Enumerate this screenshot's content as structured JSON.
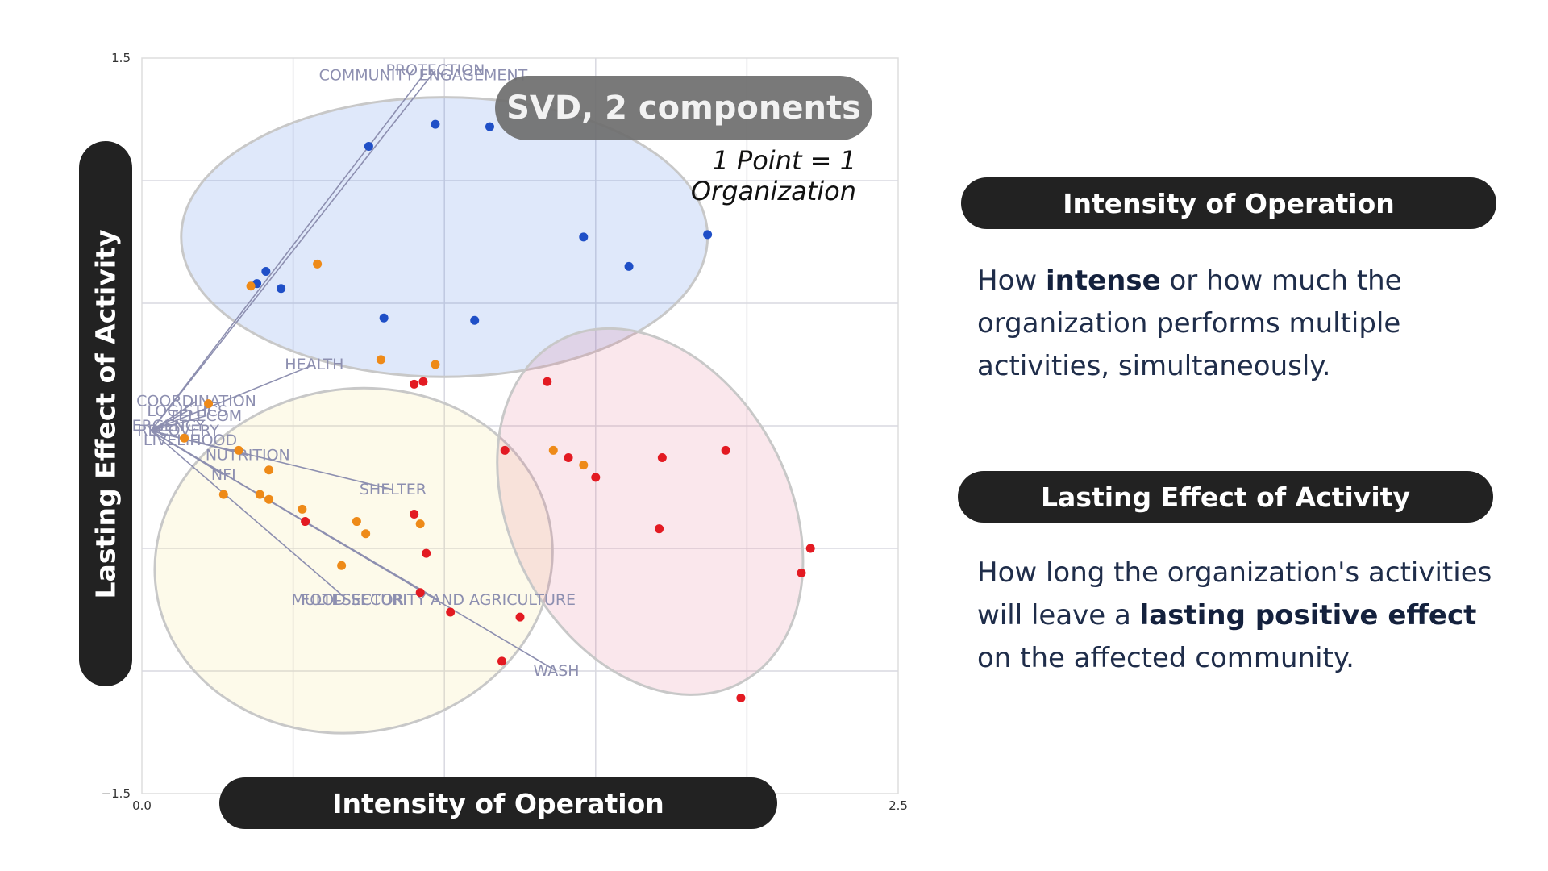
{
  "chart_data": {
    "type": "scatter",
    "title": "SVD, 2 components",
    "subtitle": "1 Point = 1 Organization",
    "xlabel": "Intensity of Operation",
    "ylabel": "Lasting Effect of Activity",
    "xlim": [
      0.0,
      2.5
    ],
    "ylim": [
      -1.5,
      1.5
    ],
    "x_ticks": [
      {
        "v": 0.0,
        "label": "0.0"
      },
      {
        "v": 2.5,
        "label": "2.5"
      }
    ],
    "y_ticks": [
      {
        "v": 1.5,
        "label": "1.5"
      },
      {
        "v": -1.5,
        "label": "−1.5"
      }
    ],
    "grid_x": [
      0.5,
      1.0,
      1.5,
      2.0
    ],
    "grid_y": [
      1.0,
      0.5,
      0.0,
      -0.5,
      -1.0
    ],
    "grid": true,
    "ellipses": [
      {
        "cx": 1.0,
        "cy": 0.77,
        "rx": 0.87,
        "ry": 0.57,
        "angle": 0,
        "color": "#3b6fe0"
      },
      {
        "cx": 0.7,
        "cy": -0.55,
        "rx": 0.66,
        "ry": 0.7,
        "angle": -10,
        "color": "#f5e27a"
      },
      {
        "cx": 1.68,
        "cy": -0.35,
        "rx": 0.46,
        "ry": 0.79,
        "angle": -28,
        "color": "#e36a86"
      }
    ],
    "origin": [
      0.03,
      -0.02
    ],
    "loadings": [
      {
        "label": "PROTECTION",
        "x": 0.97,
        "y": 1.45
      },
      {
        "label": "COMMUNITY ENGAGEMENT",
        "x": 0.93,
        "y": 1.43
      },
      {
        "label": "HEALTH",
        "x": 0.57,
        "y": 0.25
      },
      {
        "label": "COORDINATION",
        "x": 0.18,
        "y": 0.1
      },
      {
        "label": "LOGISTICS",
        "x": 0.15,
        "y": 0.06
      },
      {
        "label": "TELECOM",
        "x": 0.21,
        "y": 0.04
      },
      {
        "label": "EMERGENCY",
        "x": 0.05,
        "y": 0.0
      },
      {
        "label": "RECOVERY",
        "x": 0.12,
        "y": -0.02
      },
      {
        "label": "LIVELIHOOD",
        "x": 0.16,
        "y": -0.06
      },
      {
        "label": "NUTRITION",
        "x": 0.35,
        "y": -0.12
      },
      {
        "label": "NFI",
        "x": 0.27,
        "y": -0.2
      },
      {
        "label": "SHELTER",
        "x": 0.83,
        "y": -0.26
      },
      {
        "label": "MULTI-SECTOR",
        "x": 0.68,
        "y": -0.71
      },
      {
        "label": "FOOD SECURITY AND AGRICULTURE",
        "x": 0.98,
        "y": -0.71
      },
      {
        "label": "WASH",
        "x": 1.37,
        "y": -1.0
      }
    ],
    "series": [
      {
        "name": "",
        "color": "#1f4fc7",
        "x": [
          0.97,
          1.15,
          0.75,
          0.41,
          0.38,
          0.46,
          0.8,
          1.1,
          1.46,
          1.61,
          1.87
        ],
        "y": [
          1.23,
          1.22,
          1.14,
          0.63,
          0.58,
          0.56,
          0.44,
          0.43,
          0.77,
          0.65,
          0.78
        ]
      },
      {
        "name": "",
        "color": "#ee8a18",
        "x": [
          0.58,
          0.36,
          0.79,
          0.97,
          0.22,
          0.14,
          0.32,
          0.42,
          0.27,
          0.39,
          0.42,
          0.53,
          0.71,
          0.74,
          0.92,
          0.66,
          1.36,
          1.46
        ],
        "y": [
          0.66,
          0.57,
          0.27,
          0.25,
          0.09,
          -0.05,
          -0.1,
          -0.18,
          -0.28,
          -0.28,
          -0.3,
          -0.34,
          -0.39,
          -0.44,
          -0.4,
          -0.57,
          -0.1,
          -0.16
        ]
      },
      {
        "name": "",
        "color": "#e31a22",
        "x": [
          0.9,
          0.93,
          1.34,
          1.2,
          1.41,
          1.5,
          1.72,
          1.93,
          0.54,
          0.9,
          0.94,
          0.92,
          1.02,
          1.25,
          1.19,
          1.71,
          2.18,
          2.21,
          1.98
        ],
        "y": [
          0.17,
          0.18,
          0.18,
          -0.1,
          -0.13,
          -0.21,
          -0.13,
          -0.1,
          -0.39,
          -0.36,
          -0.52,
          -0.68,
          -0.76,
          -0.78,
          -0.96,
          -0.42,
          -0.6,
          -0.5,
          -1.11
        ]
      }
    ]
  },
  "side_panel": {
    "intensity_title": "Intensity of Operation",
    "intensity_desc": [
      "How ",
      "intense",
      " or how much the organization performs multiple activities, simultaneously."
    ],
    "lasting_title": "Lasting Effect of Activity",
    "lasting_desc": [
      "How long the organization's activities will leave a ",
      "lasting positive effect",
      " on the affected community."
    ]
  }
}
